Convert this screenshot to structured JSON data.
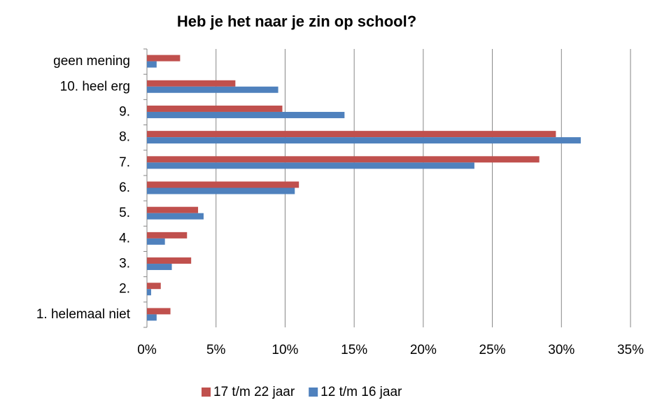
{
  "chart_data": {
    "type": "hbar",
    "title": "Heb je het naar je zin op school?",
    "categories": [
      "1. helemaal niet",
      "2.",
      "3.",
      "4.",
      "5.",
      "6.",
      "7.",
      "8.",
      "9.",
      "10. heel erg",
      "geen mening"
    ],
    "series": [
      {
        "name": "17 t/m 22 jaar",
        "color": "#c0504d",
        "values": [
          1.7,
          1.0,
          3.2,
          2.9,
          3.7,
          11.0,
          28.4,
          29.6,
          9.8,
          6.4,
          2.4
        ]
      },
      {
        "name": "12 t/m 16 jaar",
        "color": "#4f81bd",
        "values": [
          0.7,
          0.3,
          1.8,
          1.3,
          4.1,
          10.7,
          23.7,
          31.4,
          14.3,
          9.5,
          0.7
        ]
      }
    ],
    "xlim": [
      0,
      35
    ],
    "xticks": [
      {
        "value": 0,
        "label": "0%"
      },
      {
        "value": 5,
        "label": "5%"
      },
      {
        "value": 10,
        "label": "10%"
      },
      {
        "value": 15,
        "label": "15%"
      },
      {
        "value": 20,
        "label": "20%"
      },
      {
        "value": 25,
        "label": "25%"
      },
      {
        "value": 30,
        "label": "30%"
      },
      {
        "value": 35,
        "label": "35%"
      }
    ],
    "grid": true,
    "legend": "bottom"
  }
}
